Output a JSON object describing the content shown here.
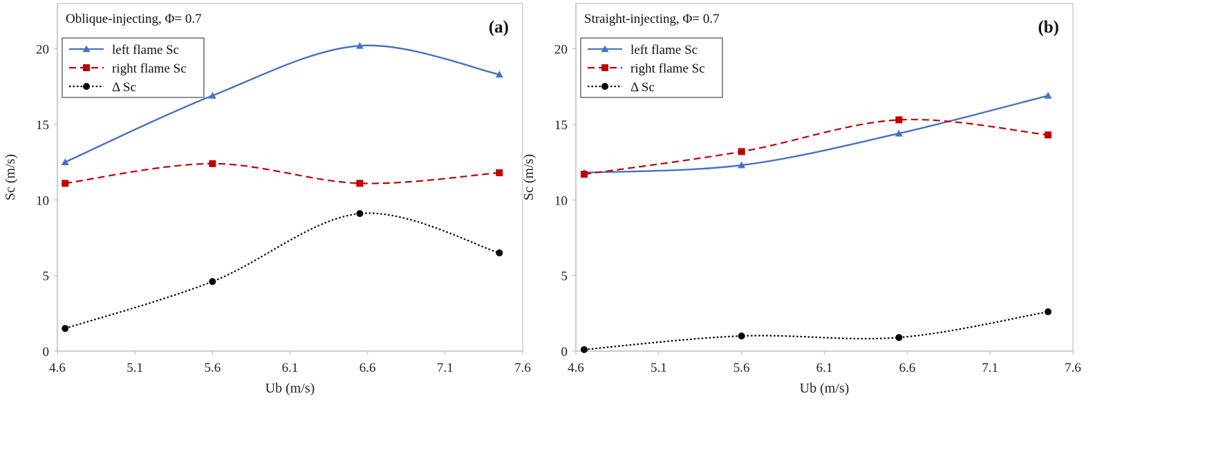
{
  "chart_data": [
    {
      "type": "line",
      "title": "Oblique-injecting, Φ= 0.7",
      "panel_label": "(a)",
      "xlabel": "Ub (m/s)",
      "ylabel": "Sc (m/s)",
      "xlim": [
        4.6,
        7.6
      ],
      "ylim": [
        0,
        23
      ],
      "xticks": [
        "4.6",
        "5.1",
        "5.6",
        "6.1",
        "6.6",
        "7.1",
        "7.6"
      ],
      "yticks": [
        "0",
        "5",
        "10",
        "15",
        "20"
      ],
      "grid": false,
      "legend_position": "top-left",
      "series": [
        {
          "name": "left flame Sc",
          "color": "#4472C4",
          "dash": "solid",
          "marker": "triangle",
          "x": [
            4.65,
            5.6,
            6.55,
            7.45
          ],
          "y": [
            12.5,
            16.9,
            20.2,
            18.3
          ]
        },
        {
          "name": "right flame Sc",
          "color": "#C00000",
          "dash": "dashed",
          "marker": "square",
          "x": [
            4.65,
            5.6,
            6.55,
            7.45
          ],
          "y": [
            11.1,
            12.4,
            11.1,
            11.8
          ]
        },
        {
          "name": "Δ Sc",
          "color": "#000000",
          "dash": "dotted",
          "marker": "circle",
          "x": [
            4.65,
            5.6,
            6.55,
            7.45
          ],
          "y": [
            1.5,
            4.6,
            9.1,
            6.5
          ]
        }
      ]
    },
    {
      "type": "line",
      "title": "Straight-injecting, Φ= 0.7",
      "panel_label": "(b)",
      "xlabel": "Ub (m/s)",
      "ylabel": "Sc (m/s)",
      "xlim": [
        4.6,
        7.6
      ],
      "ylim": [
        0,
        23
      ],
      "xticks": [
        "4.6",
        "5.1",
        "5.6",
        "6.1",
        "6.6",
        "7.1",
        "7.6"
      ],
      "yticks": [
        "0",
        "5",
        "10",
        "15",
        "20"
      ],
      "grid": false,
      "legend_position": "top-left",
      "series": [
        {
          "name": "left flame Sc",
          "color": "#4472C4",
          "dash": "solid",
          "marker": "triangle",
          "x": [
            4.65,
            5.6,
            6.55,
            7.45
          ],
          "y": [
            11.8,
            12.3,
            14.4,
            16.9
          ]
        },
        {
          "name": "right flame Sc",
          "color": "#C00000",
          "dash": "dashed",
          "marker": "square",
          "x": [
            4.65,
            5.6,
            6.55,
            7.45
          ],
          "y": [
            11.7,
            13.2,
            15.3,
            14.3
          ]
        },
        {
          "name": "Δ Sc",
          "color": "#000000",
          "dash": "dotted",
          "marker": "circle",
          "x": [
            4.65,
            5.6,
            6.55,
            7.45
          ],
          "y": [
            0.1,
            1.0,
            0.9,
            2.6
          ]
        }
      ]
    }
  ]
}
